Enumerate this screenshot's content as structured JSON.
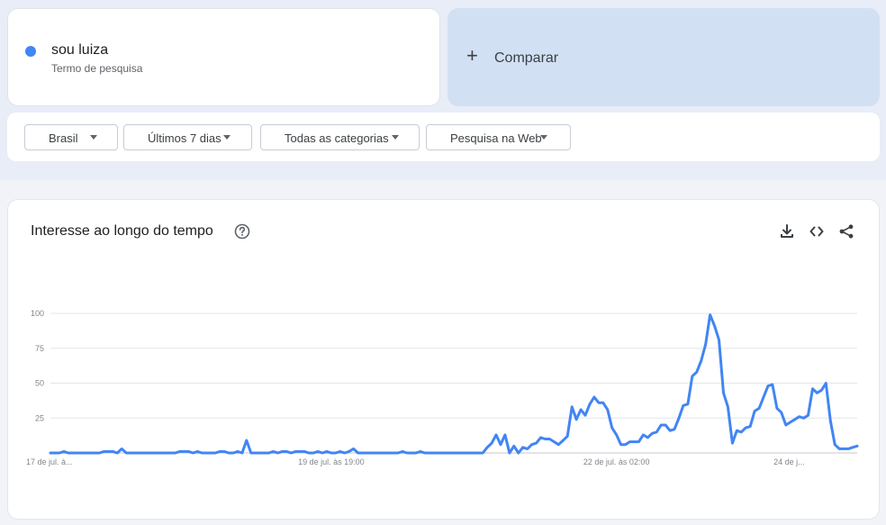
{
  "search_term": {
    "name": "sou luiza",
    "sublabel": "Termo de pesquisa",
    "color": "#4285f4"
  },
  "compare": {
    "plus": "+",
    "label": "Comparar"
  },
  "filters": [
    {
      "label": "Brasil"
    },
    {
      "label": "Últimos 7 dias"
    },
    {
      "label": "Todas as categorias"
    },
    {
      "label": "Pesquisa na Web"
    }
  ],
  "chart_panel": {
    "title": "Interesse ao longo do tempo",
    "icons": [
      "help-icon",
      "download-icon",
      "embed-icon",
      "share-icon"
    ]
  },
  "chart_data": {
    "type": "line",
    "title": "Interesse ao longo do tempo",
    "xlabel": "",
    "ylabel": "",
    "ylim": [
      0,
      100
    ],
    "y_ticks": [
      100,
      75,
      50,
      25
    ],
    "x_tick_labels": [
      "17 de jul. à...",
      "19 de jul. às 19:00",
      "22 de jul. às 02:00",
      "24 de j..."
    ],
    "x_tick_index": [
      0,
      63,
      127,
      168
    ],
    "grid": true,
    "legend": "none",
    "series": [
      {
        "color": "#4285f4",
        "values": [
          0,
          0,
          0,
          1,
          0,
          0,
          0,
          0,
          0,
          0,
          0,
          0,
          1,
          1,
          1,
          0,
          3,
          0,
          0,
          0,
          0,
          0,
          0,
          0,
          0,
          0,
          0,
          0,
          0,
          1,
          1,
          1,
          0,
          1,
          0,
          0,
          0,
          0,
          1,
          1,
          0,
          0,
          1,
          0,
          9,
          0,
          0,
          0,
          0,
          0,
          1,
          0,
          1,
          1,
          0,
          1,
          1,
          1,
          0,
          0,
          1,
          0,
          1,
          0,
          0,
          1,
          0,
          1,
          3,
          0,
          0,
          0,
          0,
          0,
          0,
          0,
          0,
          0,
          0,
          1,
          0,
          0,
          0,
          1,
          0,
          0,
          0,
          0,
          0,
          0,
          0,
          0,
          0,
          0,
          0,
          0,
          0,
          0,
          4,
          7,
          13,
          6,
          13,
          0,
          5,
          0,
          4,
          3,
          6,
          7,
          11,
          10,
          10,
          8,
          6,
          9,
          12,
          33,
          24,
          31,
          27,
          35,
          40,
          36,
          36,
          31,
          18,
          13,
          6,
          6,
          8,
          8,
          8,
          13,
          11,
          14,
          15,
          20,
          20,
          16,
          17,
          25,
          34,
          35,
          55,
          58,
          66,
          78,
          99,
          91,
          81,
          43,
          33,
          7,
          16,
          15,
          18,
          19,
          30,
          32,
          40,
          48,
          49,
          32,
          29,
          20,
          22,
          24,
          26,
          25,
          27,
          46,
          43,
          45,
          50,
          23,
          6,
          3,
          3,
          3,
          4,
          5
        ]
      }
    ]
  }
}
